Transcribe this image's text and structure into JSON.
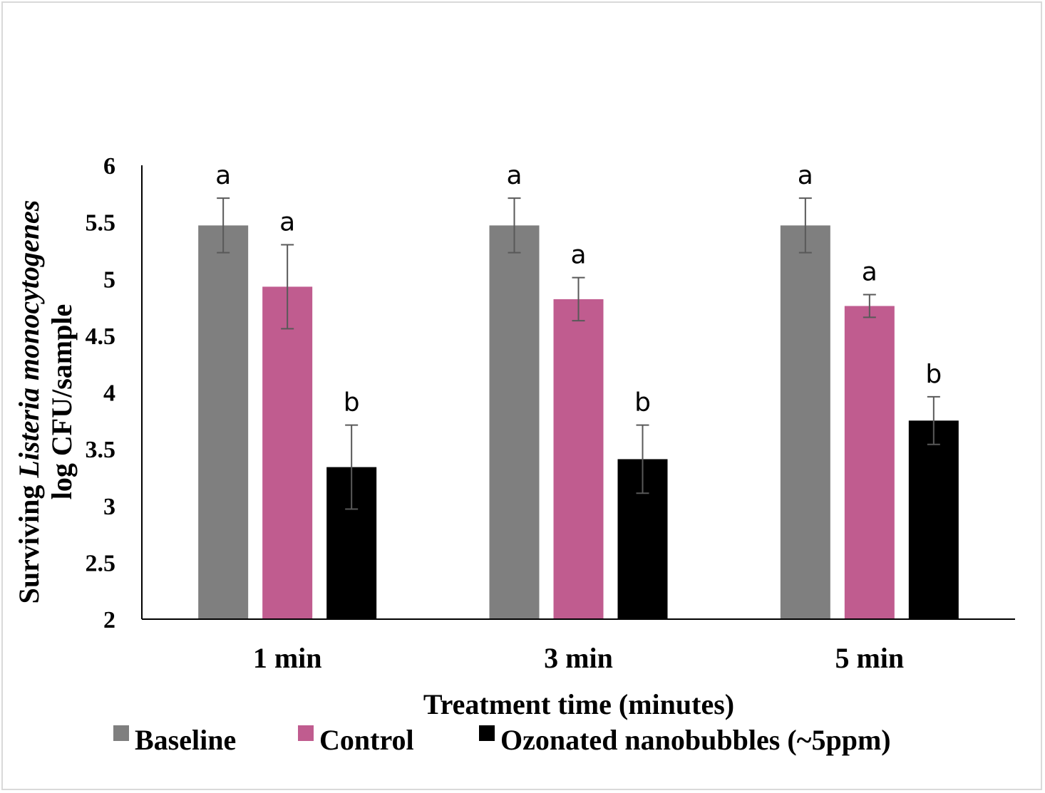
{
  "chart_data": {
    "type": "bar",
    "categories": [
      "1 min",
      "3 min",
      "5 min"
    ],
    "series": [
      {
        "name": "Baseline",
        "color": "#7f7f7f",
        "values": [
          5.47,
          5.47,
          5.47
        ],
        "errors": [
          0.24,
          0.24,
          0.24
        ],
        "letters": [
          "a",
          "a",
          "a"
        ]
      },
      {
        "name": "Control",
        "color": "#c05c8f",
        "values": [
          4.93,
          4.82,
          4.76
        ],
        "errors": [
          0.37,
          0.19,
          0.1
        ],
        "letters": [
          "a",
          "a",
          "a"
        ]
      },
      {
        "name": "Ozonated nanobubbles (~5ppm)",
        "color": "#000000",
        "values": [
          3.34,
          3.41,
          3.75
        ],
        "errors": [
          0.37,
          0.3,
          0.21
        ],
        "letters": [
          "b",
          "b",
          "b"
        ]
      }
    ],
    "yticks": [
      "2",
      "2.5",
      "3",
      "3.5",
      "4",
      "4.5",
      "5",
      "5.5",
      "6"
    ],
    "ylim": [
      2,
      6
    ],
    "xlabel": "Treatment time (minutes)",
    "ylabel": {
      "line1_prefix": "Surviving ",
      "line1_italic": "Listeria monocytogenes",
      "line2": "log CFU/sample"
    },
    "legend_position": "bottom",
    "grid": false
  }
}
